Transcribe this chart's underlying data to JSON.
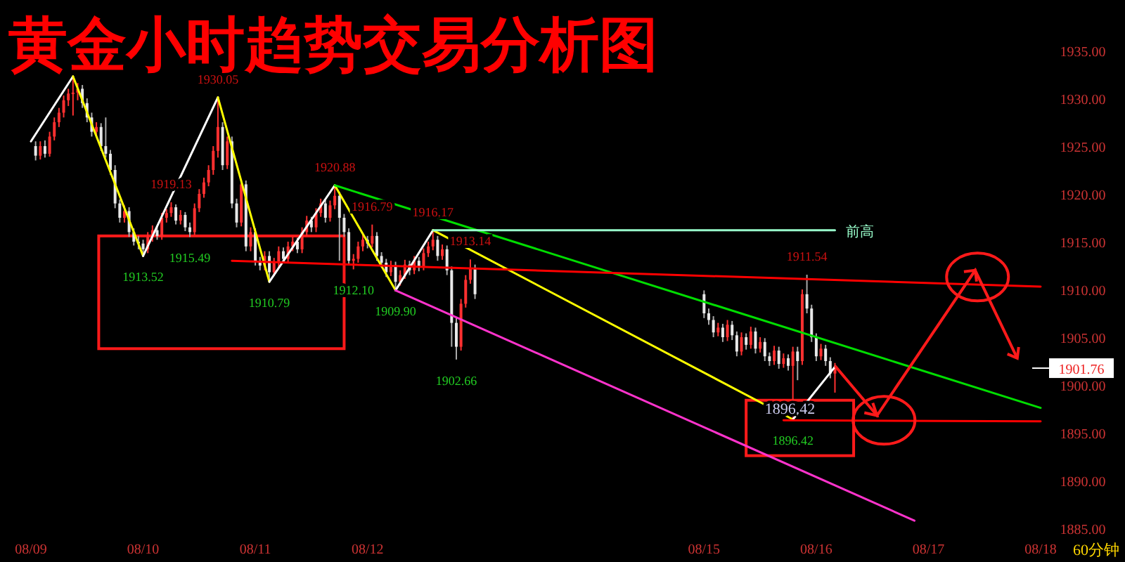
{
  "chart_data": {
    "type": "candlestick",
    "title": "黄金小时趋势交易分析图",
    "x": [
      "--08-09T01:00",
      "--08-09T02:00",
      "--08-09T03:00",
      "--08-09T04:00",
      "--08-09T05:00",
      "--08-09T06:00",
      "--08-09T07:00",
      "--08-09T08:00",
      "--08-09T09:00",
      "--08-09T10:00",
      "--08-09T11:00",
      "--08-09T12:00",
      "--08-09T13:00",
      "--08-09T14:00",
      "--08-09T15:00",
      "--08-09T16:00",
      "--08-09T17:00",
      "--08-09T18:00",
      "--08-09T19:00",
      "--08-09T20:00",
      "--08-09T21:00",
      "--08-09T22:00",
      "--08-09T23:00",
      "--08-10T00:00",
      "--08-10T01:00",
      "--08-10T02:00",
      "--08-10T03:00",
      "--08-10T04:00",
      "--08-10T05:00",
      "--08-10T06:00",
      "--08-10T07:00",
      "--08-10T08:00",
      "--08-10T09:00",
      "--08-10T10:00",
      "--08-10T11:00",
      "--08-10T12:00",
      "--08-10T13:00",
      "--08-10T14:00",
      "--08-10T15:00",
      "--08-10T16:00",
      "--08-10T17:00",
      "--08-10T18:00",
      "--08-10T19:00",
      "--08-10T20:00",
      "--08-10T21:00",
      "--08-10T22:00",
      "--08-10T23:00",
      "--08-11T00:00",
      "--08-11T01:00",
      "--08-11T02:00",
      "--08-11T03:00",
      "--08-11T04:00",
      "--08-11T05:00",
      "--08-11T06:00",
      "--08-11T07:00",
      "--08-11T08:00",
      "--08-11T09:00",
      "--08-11T10:00",
      "--08-11T11:00",
      "--08-11T12:00",
      "--08-11T13:00",
      "--08-11T14:00",
      "--08-11T15:00",
      "--08-11T16:00",
      "--08-11T17:00",
      "--08-11T18:00",
      "--08-11T19:00",
      "--08-11T20:00",
      "--08-11T21:00",
      "--08-11T22:00",
      "--08-11T23:00",
      "--08-12T00:00",
      "--08-12T01:00",
      "--08-12T02:00",
      "--08-12T03:00",
      "--08-12T04:00",
      "--08-12T05:00",
      "--08-12T06:00",
      "--08-12T07:00",
      "--08-12T08:00",
      "--08-12T09:00",
      "--08-12T10:00",
      "--08-12T11:00",
      "--08-12T12:00",
      "--08-12T13:00",
      "--08-12T14:00",
      "--08-12T15:00",
      "--08-12T16:00",
      "--08-12T17:00",
      "--08-12T18:00",
      "--08-12T19:00",
      "--08-12T20:00",
      "--08-12T21:00",
      "--08-12T22:00",
      "--08-12T23:00",
      "--08-15T00:00",
      "--08-15T01:00",
      "--08-15T02:00",
      "--08-15T03:00",
      "--08-15T04:00",
      "--08-15T05:00",
      "--08-15T06:00",
      "--08-15T07:00",
      "--08-15T08:00",
      "--08-15T09:00",
      "--08-15T10:00",
      "--08-15T11:00",
      "--08-15T12:00",
      "--08-15T13:00",
      "--08-15T14:00",
      "--08-15T15:00",
      "--08-15T16:00",
      "--08-15T17:00",
      "--08-15T18:00",
      "--08-15T19:00",
      "--08-15T20:00",
      "--08-15T21:00",
      "--08-15T22:00",
      "--08-15T23:00",
      "--08-16T00:00",
      "--08-16T01:00",
      "--08-16T02:00",
      "--08-16T03:00",
      "--08-16T04:00"
    ],
    "ohlc": [
      [
        1925.0,
        1925.5,
        1923.5,
        1924.0
      ],
      [
        1924.0,
        1925.5,
        1923.6,
        1925.0
      ],
      [
        1925.0,
        1925.6,
        1923.8,
        1924.2
      ],
      [
        1924.2,
        1926.5,
        1923.9,
        1926.0
      ],
      [
        1926.0,
        1928.0,
        1925.6,
        1927.5
      ],
      [
        1927.5,
        1929.0,
        1927.0,
        1928.5
      ],
      [
        1928.5,
        1930.3,
        1928.0,
        1929.8
      ],
      [
        1929.8,
        1931.0,
        1929.2,
        1930.5
      ],
      [
        1930.5,
        1932.3,
        1928.2,
        1930.6
      ],
      [
        1930.6,
        1931.6,
        1929.8,
        1931.0
      ],
      [
        1931.0,
        1931.4,
        1929.0,
        1929.5
      ],
      [
        1929.5,
        1930.0,
        1927.5,
        1928.0
      ],
      [
        1928.0,
        1928.5,
        1926.0,
        1926.5
      ],
      [
        1926.5,
        1927.5,
        1926.0,
        1927.0
      ],
      [
        1927.0,
        1927.4,
        1924.5,
        1925.0
      ],
      [
        1925.0,
        1928.0,
        1923.8,
        1924.2
      ],
      [
        1924.2,
        1924.6,
        1922.0,
        1922.5
      ],
      [
        1922.5,
        1923.0,
        1918.5,
        1919.0
      ],
      [
        1919.0,
        1919.4,
        1917.0,
        1917.5
      ],
      [
        1917.5,
        1918.8,
        1917.0,
        1918.2
      ],
      [
        1918.2,
        1918.6,
        1915.5,
        1916.0
      ],
      [
        1916.0,
        1916.4,
        1914.6,
        1915.0
      ],
      [
        1915.0,
        1915.6,
        1914.2,
        1914.8
      ],
      [
        1914.8,
        1915.2,
        1913.52,
        1914.2
      ],
      [
        1914.2,
        1916.0,
        1913.8,
        1915.5
      ],
      [
        1915.5,
        1916.7,
        1915.0,
        1916.2
      ],
      [
        1916.2,
        1916.6,
        1915.2,
        1915.6
      ],
      [
        1915.6,
        1918.0,
        1915.2,
        1917.5
      ],
      [
        1917.5,
        1918.4,
        1917.0,
        1918.0
      ],
      [
        1918.0,
        1919.13,
        1917.6,
        1918.6
      ],
      [
        1918.6,
        1918.9,
        1916.8,
        1917.2
      ],
      [
        1917.2,
        1918.3,
        1916.8,
        1917.8
      ],
      [
        1917.8,
        1918.1,
        1916.1,
        1916.5
      ],
      [
        1916.5,
        1917.0,
        1915.49,
        1916.0
      ],
      [
        1916.0,
        1919.0,
        1915.7,
        1918.5
      ],
      [
        1918.5,
        1920.5,
        1918.1,
        1920.0
      ],
      [
        1920.0,
        1921.7,
        1919.6,
        1921.2
      ],
      [
        1921.2,
        1923.0,
        1920.8,
        1922.5
      ],
      [
        1922.5,
        1925.0,
        1922.0,
        1924.5
      ],
      [
        1924.5,
        1930.05,
        1923.8,
        1927.0
      ],
      [
        1927.0,
        1927.5,
        1922.5,
        1923.0
      ],
      [
        1923.0,
        1926.0,
        1922.6,
        1925.5
      ],
      [
        1925.5,
        1926.0,
        1918.5,
        1919.0
      ],
      [
        1919.0,
        1919.5,
        1916.5,
        1917.0
      ],
      [
        1917.0,
        1921.5,
        1916.6,
        1921.0
      ],
      [
        1921.0,
        1921.4,
        1914.0,
        1914.5
      ],
      [
        1914.5,
        1916.5,
        1914.0,
        1916.0
      ],
      [
        1916.0,
        1916.4,
        1912.5,
        1913.0
      ],
      [
        1913.0,
        1913.4,
        1912.0,
        1912.5
      ],
      [
        1912.5,
        1914.0,
        1912.0,
        1913.5
      ],
      [
        1913.5,
        1914.0,
        1910.79,
        1911.8
      ],
      [
        1911.8,
        1913.3,
        1911.4,
        1912.8
      ],
      [
        1912.8,
        1914.5,
        1912.3,
        1914.0
      ],
      [
        1914.0,
        1914.4,
        1912.8,
        1913.2
      ],
      [
        1913.2,
        1915.0,
        1912.8,
        1914.5
      ],
      [
        1914.5,
        1915.5,
        1914.0,
        1915.0
      ],
      [
        1915.0,
        1915.4,
        1913.8,
        1914.2
      ],
      [
        1914.2,
        1916.5,
        1913.8,
        1916.0
      ],
      [
        1916.0,
        1917.7,
        1915.6,
        1917.2
      ],
      [
        1917.2,
        1917.6,
        1916.0,
        1916.5
      ],
      [
        1916.5,
        1918.5,
        1916.0,
        1918.0
      ],
      [
        1918.0,
        1919.5,
        1917.6,
        1919.0
      ],
      [
        1919.0,
        1919.4,
        1917.0,
        1917.5
      ],
      [
        1917.5,
        1919.3,
        1917.1,
        1918.8
      ],
      [
        1918.8,
        1920.88,
        1918.4,
        1919.8
      ],
      [
        1919.8,
        1920.2,
        1913.0,
        1917.5
      ],
      [
        1917.5,
        1917.9,
        1915.5,
        1916.0
      ],
      [
        1916.0,
        1916.4,
        1912.6,
        1913.0
      ],
      [
        1913.0,
        1913.7,
        1912.1,
        1913.2
      ],
      [
        1913.2,
        1915.0,
        1912.8,
        1914.5
      ],
      [
        1914.5,
        1915.7,
        1914.0,
        1915.2
      ],
      [
        1915.2,
        1915.6,
        1914.3,
        1914.8
      ],
      [
        1914.8,
        1916.79,
        1914.4,
        1915.6
      ],
      [
        1915.6,
        1916.0,
        1913.0,
        1913.5
      ],
      [
        1913.5,
        1913.9,
        1912.3,
        1912.8
      ],
      [
        1912.8,
        1913.2,
        1911.3,
        1911.8
      ],
      [
        1911.8,
        1913.0,
        1911.4,
        1912.5
      ],
      [
        1912.5,
        1912.9,
        1909.9,
        1910.8
      ],
      [
        1910.8,
        1912.0,
        1910.4,
        1911.5
      ],
      [
        1911.5,
        1913.1,
        1911.1,
        1912.6
      ],
      [
        1912.6,
        1913.0,
        1911.5,
        1912.0
      ],
      [
        1912.0,
        1913.5,
        1911.6,
        1913.0
      ],
      [
        1913.0,
        1913.4,
        1911.9,
        1912.4
      ],
      [
        1912.4,
        1914.3,
        1912.0,
        1913.8
      ],
      [
        1913.8,
        1915.0,
        1913.4,
        1914.5
      ],
      [
        1914.5,
        1916.17,
        1914.1,
        1915.2
      ],
      [
        1915.2,
        1915.6,
        1913.0,
        1913.5
      ],
      [
        1913.5,
        1914.7,
        1913.1,
        1914.2
      ],
      [
        1914.2,
        1914.6,
        1911.5,
        1912.0
      ],
      [
        1912.0,
        1912.4,
        1904.0,
        1906.5
      ],
      [
        1906.5,
        1907.0,
        1902.66,
        1904.0
      ],
      [
        1904.0,
        1909.0,
        1903.6,
        1908.5
      ],
      [
        1908.5,
        1911.5,
        1908.1,
        1911.0
      ],
      [
        1911.0,
        1913.14,
        1910.6,
        1912.2
      ],
      [
        1912.2,
        1912.6,
        1909.0,
        1909.5
      ],
      [
        1909.5,
        1909.9,
        1907.0,
        1907.5
      ],
      [
        1907.5,
        1908.0,
        1906.3,
        1906.8
      ],
      [
        1906.8,
        1907.2,
        1905.0,
        1905.5
      ],
      [
        1905.5,
        1906.5,
        1905.1,
        1906.0
      ],
      [
        1906.0,
        1906.4,
        1904.5,
        1905.0
      ],
      [
        1905.0,
        1906.8,
        1904.6,
        1906.3
      ],
      [
        1906.3,
        1906.7,
        1904.7,
        1905.2
      ],
      [
        1905.2,
        1905.6,
        1903.0,
        1903.5
      ],
      [
        1903.5,
        1905.5,
        1903.1,
        1905.0
      ],
      [
        1905.0,
        1905.4,
        1903.7,
        1904.2
      ],
      [
        1904.2,
        1906.1,
        1903.8,
        1905.6
      ],
      [
        1905.6,
        1906.0,
        1903.3,
        1903.8
      ],
      [
        1903.8,
        1905.0,
        1903.4,
        1904.5
      ],
      [
        1904.5,
        1904.9,
        1902.5,
        1903.0
      ],
      [
        1903.0,
        1903.4,
        1902.0,
        1902.5
      ],
      [
        1902.5,
        1904.1,
        1902.1,
        1903.6
      ],
      [
        1903.6,
        1904.0,
        1901.7,
        1902.2
      ],
      [
        1902.2,
        1903.3,
        1901.8,
        1902.8
      ],
      [
        1902.8,
        1903.2,
        1901.5,
        1902.0
      ],
      [
        1902.0,
        1904.0,
        1896.42,
        1903.5
      ],
      [
        1903.5,
        1904.0,
        1900.5,
        1902.5
      ],
      [
        1902.5,
        1910.0,
        1902.1,
        1909.5
      ],
      [
        1909.5,
        1911.54,
        1907.5,
        1908.0
      ],
      [
        1908.0,
        1908.4,
        1904.5,
        1905.0
      ],
      [
        1905.0,
        1905.4,
        1902.5,
        1903.0
      ],
      [
        1903.0,
        1904.3,
        1902.6,
        1903.8
      ],
      [
        1903.8,
        1904.2,
        1902.0,
        1902.5
      ],
      [
        1902.5,
        1902.9,
        1900.7,
        1901.2
      ],
      [
        1901.2,
        1902.3,
        1899.2,
        1901.76
      ]
    ],
    "series": [
      {
        "type": "line",
        "color": "#ffffff",
        "x": [
          "--08-09T00:00",
          "--08-09T09:00"
        ],
        "values": [
          1925.5,
          1932.3
        ]
      },
      {
        "type": "line",
        "color": "#ffff00",
        "x": [
          "--08-09T09:00",
          "--08-10T00:00"
        ],
        "values": [
          1932.3,
          1913.5
        ]
      },
      {
        "type": "line",
        "color": "#ffffff",
        "x": [
          "--08-10T00:00",
          "--08-10T16:00"
        ],
        "values": [
          1913.5,
          1930.1
        ]
      },
      {
        "type": "line",
        "color": "#ffff00",
        "x": [
          "--08-10T16:00",
          "--08-11T03:00"
        ],
        "values": [
          1930.1,
          1910.8
        ]
      },
      {
        "type": "line",
        "color": "#ffffff",
        "x": [
          "--08-11T03:00",
          "--08-11T17:00"
        ],
        "values": [
          1910.8,
          1920.9
        ]
      },
      {
        "type": "line",
        "color": "#ffff00",
        "x": [
          "--08-11T17:00",
          "--08-12T06:00"
        ],
        "values": [
          1920.9,
          1909.9
        ]
      },
      {
        "type": "line",
        "color": "#ffffff",
        "x": [
          "--08-12T06:00",
          "--08-12T14:00"
        ],
        "values": [
          1909.9,
          1916.2
        ]
      },
      {
        "type": "line",
        "color": "#ffff00",
        "x": [
          "--08-12T14:00",
          "--08-15T19:00"
        ],
        "values": [
          1916.2,
          1896.4
        ]
      },
      {
        "type": "line",
        "color": "#ffffff",
        "x": [
          "--08-15T19:00",
          "--08-16T04:00"
        ],
        "values": [
          1896.4,
          1901.9
        ]
      },
      {
        "type": "line",
        "color": "#00dd00",
        "x": [
          "--08-11T17:00",
          "--08-18T00:00"
        ],
        "values": [
          1920.9,
          1897.6
        ]
      },
      {
        "type": "line",
        "color": "#ff33cc",
        "x": [
          "--08-12T06:00",
          "--08-16T21:00"
        ],
        "values": [
          1909.9,
          1885.8
        ]
      },
      {
        "type": "line",
        "color": "#99ffcc",
        "name": "前高",
        "x": [
          "--08-12T14:00",
          "--08-16T04:00"
        ],
        "values": [
          1916.2,
          1916.2
        ]
      },
      {
        "type": "line",
        "color": "#ff0000",
        "x": [
          "--08-10T19:00",
          "--08-18T00:00"
        ],
        "values": [
          1913.0,
          1910.3
        ]
      },
      {
        "type": "line",
        "color": "#ff0000",
        "x": [
          "--08-15T17:00",
          "--08-18T00:00"
        ],
        "values": [
          1896.3,
          1896.2
        ]
      }
    ],
    "annotations": [
      {
        "text": "1930.05",
        "x": "--08-10T16:00",
        "y": 1930.05
      },
      {
        "text": "1913.52",
        "x": "--08-10T00:00",
        "y": 1913.52
      },
      {
        "text": "1919.13",
        "x": "--08-10T06:00",
        "y": 1919.13
      },
      {
        "text": "1915.49",
        "x": "--08-10T10:00",
        "y": 1915.49
      },
      {
        "text": "1910.79",
        "x": "--08-11T03:00",
        "y": 1910.79
      },
      {
        "text": "1920.88",
        "x": "--08-11T17:00",
        "y": 1920.88
      },
      {
        "text": "1912.10",
        "x": "--08-11T21:00",
        "y": 1912.1
      },
      {
        "text": "1916.79",
        "x": "--08-12T01:00",
        "y": 1916.79
      },
      {
        "text": "1909.90",
        "x": "--08-12T06:00",
        "y": 1909.9
      },
      {
        "text": "1916.17",
        "x": "--08-12T14:00",
        "y": 1916.17
      },
      {
        "text": "1902.66",
        "x": "--08-12T19:00",
        "y": 1902.66
      },
      {
        "text": "1913.14",
        "x": "--08-12T22:00",
        "y": 1913.14
      },
      {
        "text": "1911.54",
        "x": "--08-15T22:00",
        "y": 1911.54
      },
      {
        "text": "1896.42",
        "x": "--08-15T19:00",
        "y": 1896.42
      },
      "1896.42",
      "60分钟"
    ],
    "ref_lines": [
      {
        "axis": "y",
        "value": 1901.76,
        "label": "1901.76"
      }
    ],
    "xlim": [
      "--08-09",
      "--08-18"
    ],
    "xticks": [
      {
        "value": "--08-09",
        "label": "08/09"
      },
      {
        "value": "--08-10",
        "label": "08/10"
      },
      {
        "value": "--08-11",
        "label": "08/11"
      },
      {
        "value": "--08-12",
        "label": "08/12"
      },
      {
        "value": "--08-15",
        "label": "08/15"
      },
      {
        "value": "--08-16",
        "label": "08/16"
      },
      {
        "value": "--08-17",
        "label": "08/17"
      },
      {
        "value": "--08-18",
        "label": "08/18"
      }
    ],
    "ylim": [
      1885,
      1935
    ],
    "yticks": [
      {
        "value": 1885,
        "label": "1885.00"
      },
      {
        "value": 1890,
        "label": "1890.00"
      },
      {
        "value": 1895,
        "label": "1895.00"
      },
      {
        "value": 1900,
        "label": "1900.00"
      },
      {
        "value": 1905,
        "label": "1905.00"
      },
      {
        "value": 1910,
        "label": "1910.00"
      },
      {
        "value": 1915,
        "label": "1915.00"
      },
      {
        "value": 1920,
        "label": "1920.00"
      },
      {
        "value": 1925,
        "label": "1925.00"
      },
      {
        "value": 1930,
        "label": "1930.00"
      },
      {
        "value": 1935,
        "label": "1935.00"
      }
    ]
  }
}
